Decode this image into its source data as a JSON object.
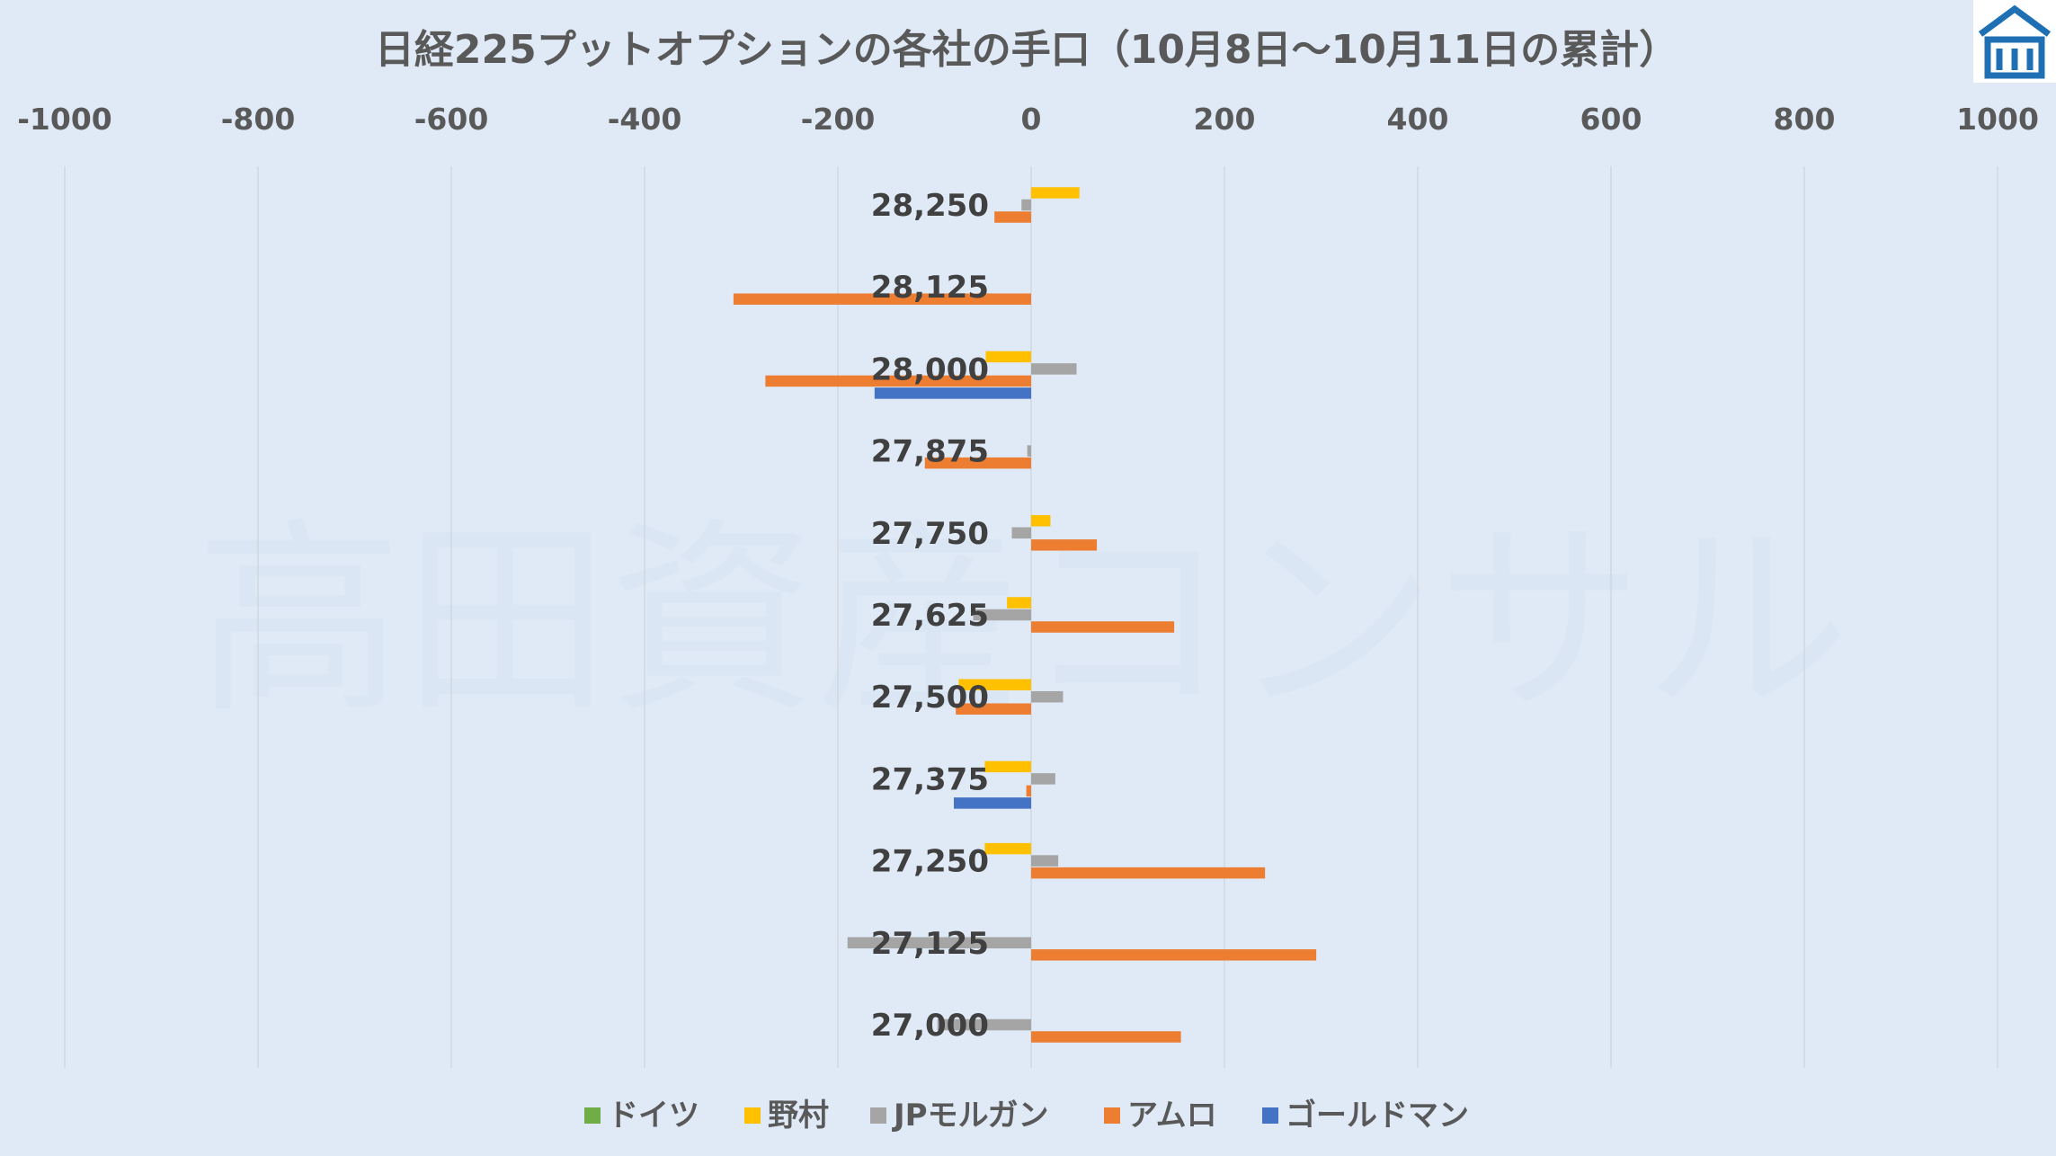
{
  "chart_data": {
    "type": "bar",
    "orientation": "horizontal",
    "title": "日経225プットオプションの各社の手口（10月8日～10月11日の累計）",
    "xlabel": "",
    "ylabel": "",
    "xlim": [
      -1000,
      1000
    ],
    "x_ticks": [
      "-1000",
      "-800",
      "-600",
      "-400",
      "-200",
      "0",
      "200",
      "400",
      "600",
      "800",
      "1000"
    ],
    "grid": "vertical",
    "legend_position": "bottom",
    "categories": [
      "28,250",
      "28,125",
      "28,000",
      "27,875",
      "27,750",
      "27,625",
      "27,500",
      "27,375",
      "27,250",
      "27,125",
      "27,000"
    ],
    "series": [
      {
        "name": "ドイツ",
        "color": "#70ad47",
        "values": [
          0,
          0,
          0,
          0,
          0,
          0,
          0,
          0,
          0,
          0,
          0
        ]
      },
      {
        "name": "野村",
        "color": "#ffc000",
        "values": [
          50,
          0,
          -47,
          0,
          20,
          -25,
          -75,
          -48,
          -48,
          0,
          0
        ]
      },
      {
        "name": "JPモルガン",
        "color": "#a5a5a5",
        "values": [
          -10,
          0,
          47,
          -4,
          -20,
          -60,
          33,
          25,
          28,
          -190,
          -97
        ]
      },
      {
        "name": "アムロ",
        "color": "#ed7d31",
        "values": [
          -38,
          -308,
          -275,
          -110,
          68,
          148,
          -78,
          -5,
          242,
          295,
          155
        ]
      },
      {
        "name": "ゴールドマン",
        "color": "#4472c4",
        "values": [
          0,
          0,
          -162,
          0,
          0,
          0,
          0,
          -80,
          0,
          0,
          0
        ]
      }
    ]
  },
  "watermark": "高田資産コンサル",
  "logo": {
    "icon": "building-logo-icon",
    "color": "#1f6fb5"
  }
}
